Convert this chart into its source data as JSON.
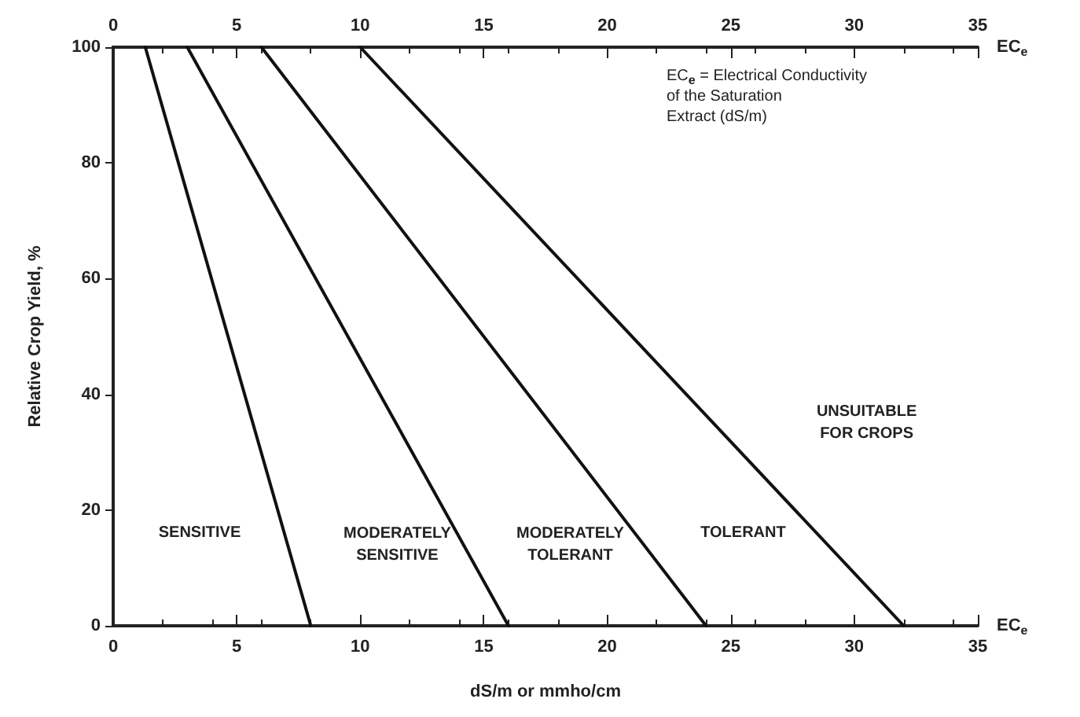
{
  "chart_data": {
    "type": "line",
    "xlabel": "EC$_{e}$",
    "x2label": "EC$_{e}$",
    "ylabel": "Relative Crop Yield, %",
    "xlim": [
      0,
      35
    ],
    "xticks": [
      0,
      5,
      10,
      15,
      20,
      25,
      30,
      35
    ],
    "x2lim": [
      0,
      35
    ],
    "x2ticks": [
      0,
      5,
      10,
      15,
      20,
      25,
      30,
      35
    ],
    "ylim": [
      0,
      100
    ],
    "yticks": [
      0,
      20,
      40,
      60,
      80,
      100
    ],
    "grid": false,
    "marker": "none",
    "line_style": "solid",
    "series": [
      {
        "color": "#111111",
        "x": [
          1.3,
          8
        ],
        "values": [
          100,
          0
        ]
      },
      {
        "color": "#111111",
        "x": [
          3,
          16
        ],
        "values": [
          100,
          0
        ]
      },
      {
        "color": "#111111",
        "x": [
          6,
          24
        ],
        "values": [
          100,
          0
        ]
      },
      {
        "color": "#111111",
        "x": [
          10,
          32
        ],
        "values": [
          100,
          0
        ]
      }
    ],
    "annotations": [
      "EC$_{e}$ = Electrical Conductivity\nof the Saturation\nExtract (dS/m)",
      "dS/m or mmho/cm",
      "SENSITIVE",
      "MODERATELY\nSENSITIVE",
      "MODERATELY\nTOLERANT",
      "TOLERANT",
      "UNSUITABLE\nFOR CROPS"
    ]
  }
}
